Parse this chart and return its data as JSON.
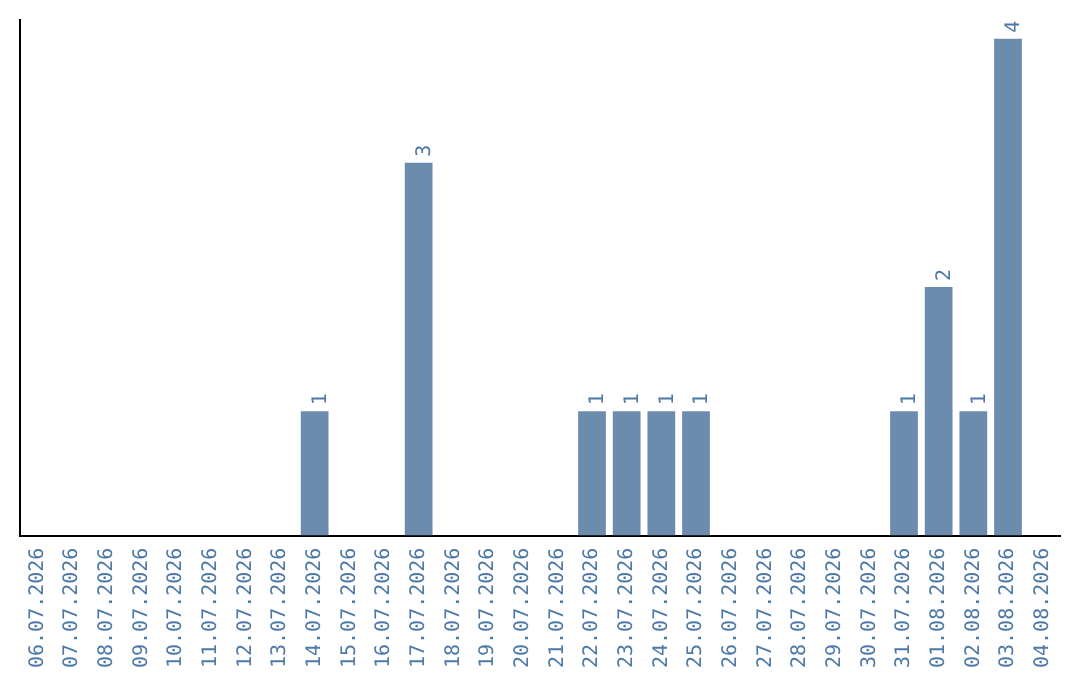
{
  "chart_data": {
    "type": "bar",
    "categories": [
      "06.07.2026",
      "07.07.2026",
      "08.07.2026",
      "09.07.2026",
      "10.07.2026",
      "11.07.2026",
      "12.07.2026",
      "13.07.2026",
      "14.07.2026",
      "15.07.2026",
      "16.07.2026",
      "17.07.2026",
      "18.07.2026",
      "19.07.2026",
      "20.07.2026",
      "21.07.2026",
      "22.07.2026",
      "23.07.2026",
      "24.07.2026",
      "25.07.2026",
      "26.07.2026",
      "27.07.2026",
      "28.07.2026",
      "29.07.2026",
      "30.07.2026",
      "31.07.2026",
      "01.08.2026",
      "02.08.2026",
      "03.08.2026",
      "04.08.2026"
    ],
    "values": [
      0,
      0,
      0,
      0,
      0,
      0,
      0,
      0,
      1,
      0,
      0,
      3,
      0,
      0,
      0,
      0,
      1,
      1,
      1,
      1,
      0,
      0,
      0,
      0,
      0,
      1,
      2,
      1,
      4,
      0
    ],
    "value_labels": [
      null,
      null,
      null,
      null,
      null,
      null,
      null,
      null,
      "1",
      null,
      null,
      "3",
      null,
      null,
      null,
      null,
      "1",
      "1",
      "1",
      "1",
      null,
      null,
      null,
      null,
      null,
      "1",
      "2",
      "1",
      "4",
      null
    ],
    "color": "#6b8cac",
    "ylim": [
      0,
      4.15
    ],
    "grid": false,
    "legend": false
  }
}
